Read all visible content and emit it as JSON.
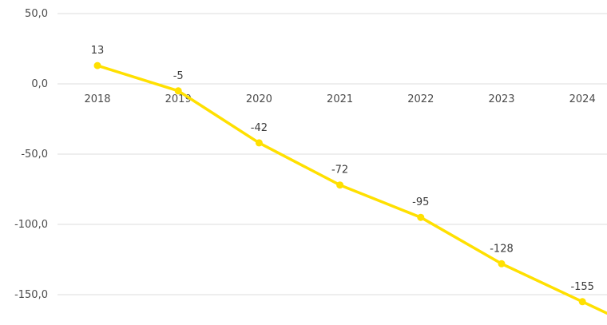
{
  "chart_data": {
    "type": "line",
    "categories": [
      "2018",
      "2019",
      "2020",
      "2021",
      "2022",
      "2023",
      "2024"
    ],
    "series": [
      {
        "values": [
          13,
          -5,
          -42,
          -72,
          -95,
          -128,
          -155
        ],
        "color": "#ffe000"
      }
    ],
    "data_labels": [
      "13",
      "-5",
      "-42",
      "-72",
      "-95",
      "-128",
      "-155"
    ],
    "y_ticks": [
      50,
      0,
      -50,
      -100,
      -150
    ],
    "y_tick_labels": [
      "50,0",
      "0,0",
      "-50,0",
      "-100,0",
      "-150,0"
    ],
    "ylim": [
      -165,
      50
    ],
    "grid": true,
    "x_axis_position": "at zero",
    "line_extends_past_last_point": true
  }
}
